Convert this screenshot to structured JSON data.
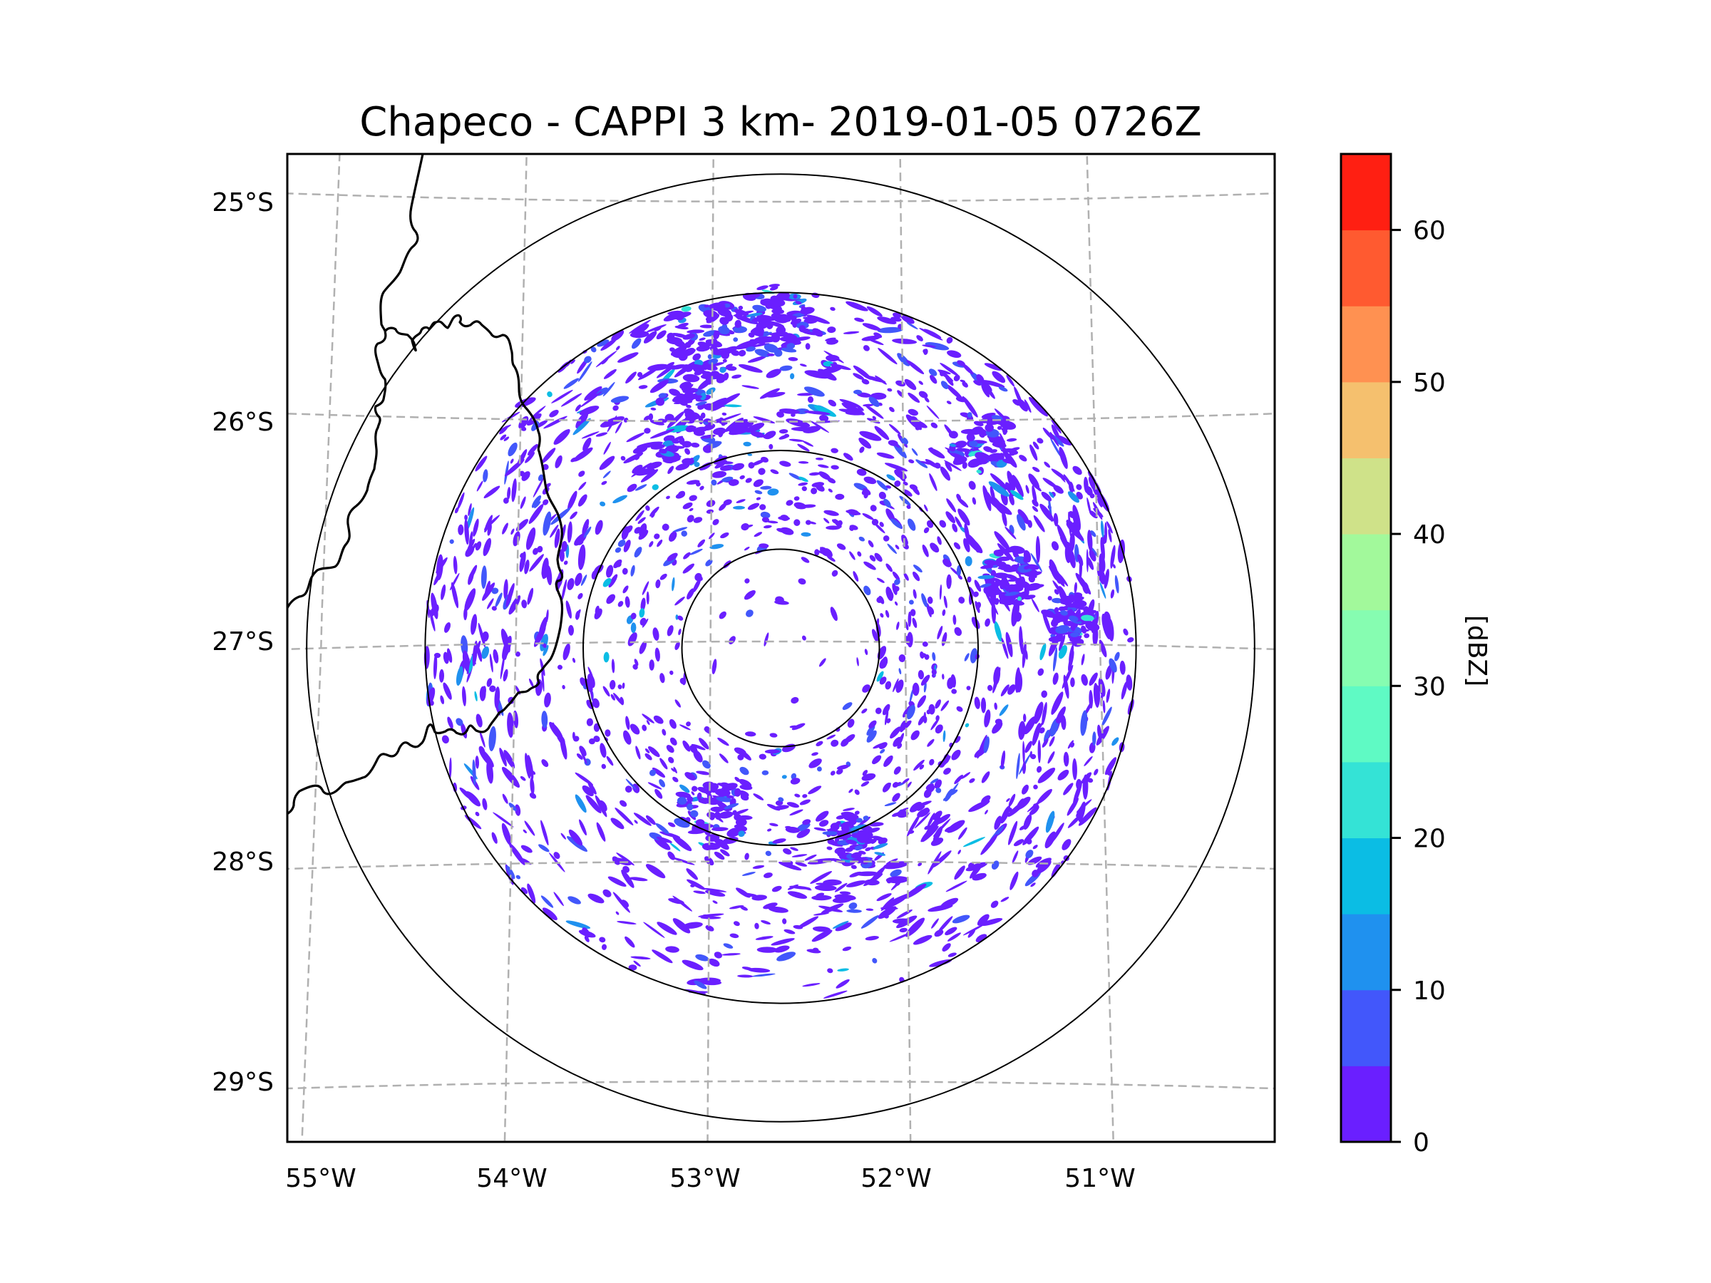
{
  "chart_data": {
    "type": "heatmap",
    "subtype": "radar-ppi-map",
    "title": "Chapeco - CAPPI 3 km- 2019-01-05 0726Z",
    "radar": {
      "name": "Chapeco",
      "product": "CAPPI 3 km",
      "date": "2019-01-05",
      "time": "0726Z"
    },
    "xlabel": "",
    "ylabel": "",
    "x_ticks": [
      {
        "value": -55,
        "label": "55°W"
      },
      {
        "value": -54,
        "label": "54°W"
      },
      {
        "value": -53,
        "label": "53°W"
      },
      {
        "value": -52,
        "label": "52°W"
      },
      {
        "value": -51,
        "label": "51°W"
      }
    ],
    "y_ticks": [
      {
        "value": -25,
        "label": "25°S"
      },
      {
        "value": -26,
        "label": "26°S"
      },
      {
        "value": -27,
        "label": "27°S"
      },
      {
        "value": -28,
        "label": "28°S"
      },
      {
        "value": -29,
        "label": "29°S"
      }
    ],
    "xlim": [
      -55.17,
      -50.06
    ],
    "ylim": [
      -29.27,
      -24.79
    ],
    "grid": true,
    "radar_center": {
      "lon": -52.6,
      "lat": -27.03
    },
    "range_rings_km": [
      50,
      100,
      180,
      240
    ],
    "colorbar": {
      "label": "[dBZ]",
      "position": "right",
      "range": [
        0,
        65
      ],
      "step": 5,
      "ticks": [
        0,
        10,
        20,
        30,
        40,
        50,
        60
      ],
      "tick_labels": [
        "0",
        "10",
        "20",
        "30",
        "40",
        "50",
        "60"
      ],
      "colors": [
        "#6a1fff",
        "#4257fb",
        "#1f91ef",
        "#0bbde4",
        "#34e3d6",
        "#5ffac4",
        "#86fdb1",
        "#a2f99b",
        "#cfe289",
        "#f5c06e",
        "#ff9151",
        "#ff5a30",
        "#ff1f12"
      ]
    },
    "echo_summary": {
      "dominant_range_dbz": [
        0,
        5
      ],
      "max_observed_dbz_approx": 20,
      "description": "Scattered weak echoes across the radar domain, densest in the outer annulus to the north and east; inner 50 km nearly clear."
    },
    "map_features": [
      "country borders",
      "state borders"
    ]
  }
}
